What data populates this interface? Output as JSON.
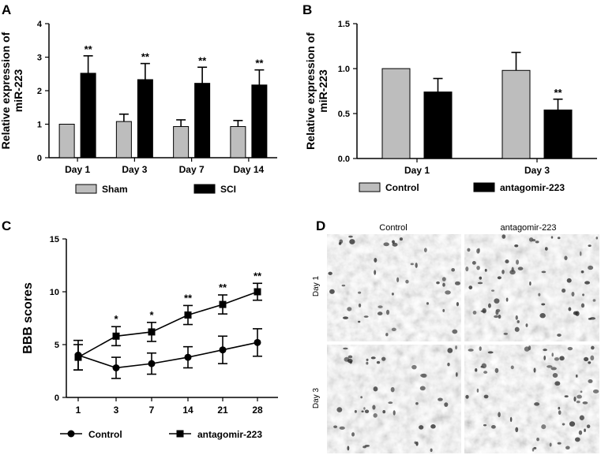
{
  "panels": {
    "A": "A",
    "B": "B",
    "C": "C",
    "D": "D"
  },
  "histology": {
    "col_labels": [
      "Control",
      "antagomir-223"
    ],
    "row_labels": [
      "Day 1",
      "Day 3"
    ]
  },
  "chart_data": [
    {
      "id": "A",
      "type": "bar",
      "title": "",
      "xlabel": "",
      "ylabel": "Relative expression of miR-223",
      "ylabel_lines": [
        "Relative expression of",
        "miR-223"
      ],
      "ylim": [
        0,
        4
      ],
      "yticks": [
        0,
        1,
        2,
        3,
        4
      ],
      "ytick_labels": [
        "0",
        "1",
        "2",
        "3",
        "4"
      ],
      "categories": [
        "Day 1",
        "Day 3",
        "Day 7",
        "Day 14"
      ],
      "series": [
        {
          "name": "Sham",
          "color": "#bdbdbd",
          "values": [
            1.0,
            1.08,
            0.93,
            0.93
          ],
          "errors": [
            0.0,
            0.22,
            0.2,
            0.18
          ],
          "sig": [
            "",
            "",
            "",
            ""
          ]
        },
        {
          "name": "SCI",
          "color": "#000000",
          "values": [
            2.52,
            2.33,
            2.22,
            2.17
          ],
          "errors": [
            0.52,
            0.48,
            0.48,
            0.45
          ],
          "sig": [
            "**",
            "**",
            "**",
            "**"
          ]
        }
      ]
    },
    {
      "id": "B",
      "type": "bar",
      "title": "",
      "xlabel": "",
      "ylabel": "Relative expression of miR-223",
      "ylabel_lines": [
        "Relative expression of",
        "miR-223"
      ],
      "ylim": [
        0,
        1.5
      ],
      "yticks": [
        0,
        0.5,
        1.0,
        1.5
      ],
      "ytick_labels": [
        "0.0",
        "0.5",
        "1.0",
        "1.5"
      ],
      "categories": [
        "Day 1",
        "Day 3"
      ],
      "series": [
        {
          "name": "Control",
          "color": "#bdbdbd",
          "values": [
            1.0,
            0.98
          ],
          "errors": [
            0.0,
            0.2
          ],
          "sig": [
            "",
            ""
          ]
        },
        {
          "name": "antagomir-223",
          "color": "#000000",
          "values": [
            0.74,
            0.54
          ],
          "errors": [
            0.15,
            0.12
          ],
          "sig": [
            "",
            "**"
          ]
        }
      ]
    },
    {
      "id": "C",
      "type": "line",
      "title": "",
      "xlabel": "",
      "ylabel": "BBB scores",
      "ylim": [
        0,
        15
      ],
      "yticks": [
        0,
        5,
        10,
        15
      ],
      "ytick_labels": [
        "0",
        "5",
        "10",
        "15"
      ],
      "x": [
        "1",
        "3",
        "7",
        "14",
        "21",
        "28"
      ],
      "series": [
        {
          "name": "Control",
          "marker": "circle",
          "values": [
            4.0,
            2.8,
            3.2,
            3.8,
            4.5,
            5.2
          ],
          "errors": [
            1.4,
            1.0,
            1.0,
            1.0,
            1.3,
            1.3
          ]
        },
        {
          "name": "antagomir-223",
          "marker": "square",
          "values": [
            3.8,
            5.8,
            6.2,
            7.8,
            8.8,
            10.0
          ],
          "errors": [
            1.2,
            0.9,
            0.9,
            0.9,
            0.9,
            0.8
          ]
        }
      ],
      "sig": [
        "",
        "*",
        "*",
        "**",
        "**",
        "**"
      ]
    }
  ]
}
